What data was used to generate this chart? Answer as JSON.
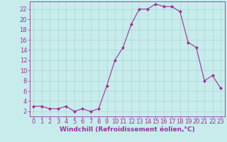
{
  "x": [
    0,
    1,
    2,
    3,
    4,
    5,
    6,
    7,
    8,
    9,
    10,
    11,
    12,
    13,
    14,
    15,
    16,
    17,
    18,
    19,
    20,
    21,
    22,
    23
  ],
  "y": [
    3,
    3,
    2.5,
    2.5,
    3,
    2,
    2.5,
    2,
    2.5,
    7,
    12,
    14.5,
    19,
    22,
    22,
    23,
    22.5,
    22.5,
    21.5,
    15.5,
    14.5,
    8,
    9,
    6.5
  ],
  "line_color": "#993399",
  "marker": "D",
  "marker_size": 2.0,
  "bg_color": "#c8ecec",
  "grid_color": "#b0d8d8",
  "xlabel": "Windchill (Refroidissement éolien,°C)",
  "xlim": [
    -0.5,
    23.5
  ],
  "ylim": [
    1,
    23.5
  ],
  "yticks": [
    2,
    4,
    6,
    8,
    10,
    12,
    14,
    16,
    18,
    20,
    22
  ],
  "xticks": [
    0,
    1,
    2,
    3,
    4,
    5,
    6,
    7,
    8,
    9,
    10,
    11,
    12,
    13,
    14,
    15,
    16,
    17,
    18,
    19,
    20,
    21,
    22,
    23
  ],
  "axis_color": "#993399",
  "tick_color": "#993399",
  "label_color": "#993399",
  "font_size_label": 6.5,
  "font_size_tick": 6.0
}
